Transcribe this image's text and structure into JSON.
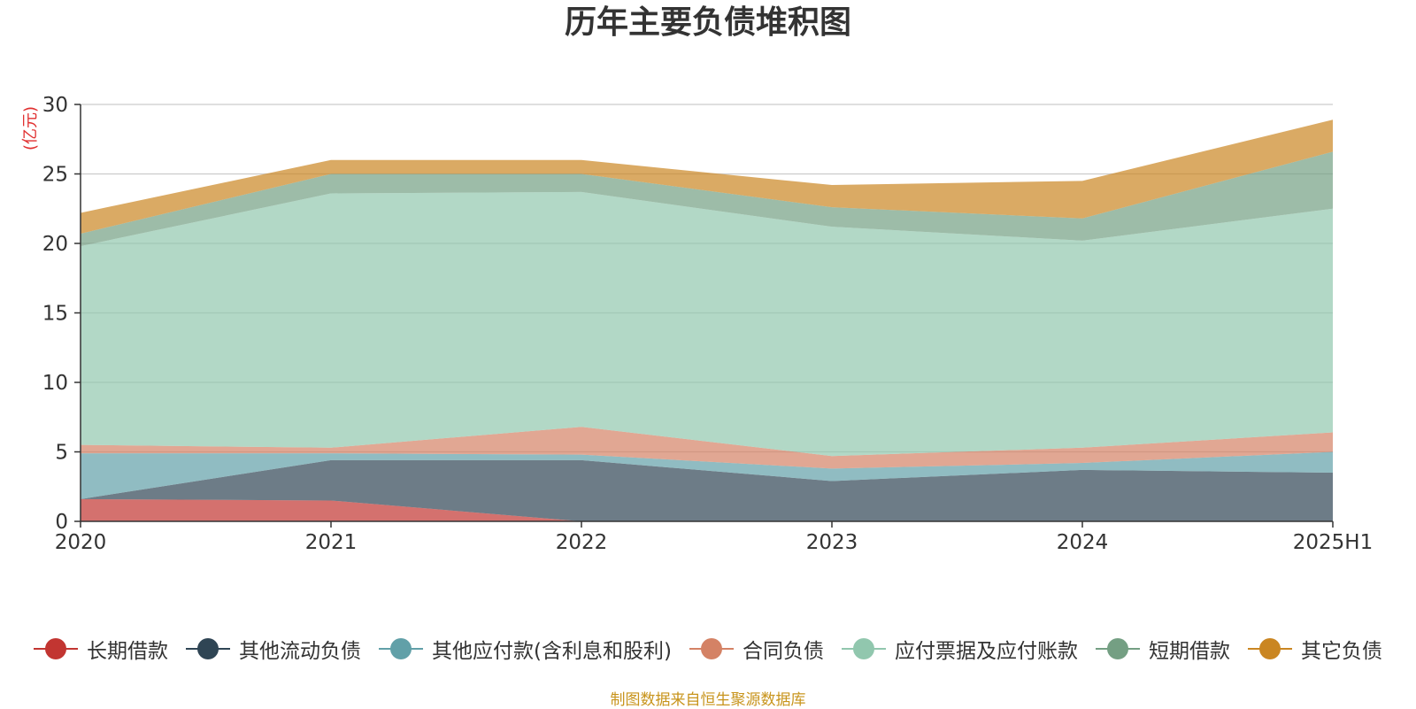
{
  "chart_data": {
    "type": "area",
    "title": "历年主要负债堆积图",
    "ylabel": "(亿元)",
    "ylim": [
      0,
      30
    ],
    "yticks": [
      0,
      5,
      10,
      15,
      20,
      25,
      30
    ],
    "grid": true,
    "legend_position": "bottom",
    "categories": [
      "2020",
      "2021",
      "2022",
      "2023",
      "2024",
      "2025H1"
    ],
    "series": [
      {
        "name": "长期借款",
        "color": "#c23531",
        "values": [
          1.6,
          1.5,
          0.0,
          0.0,
          0.0,
          0.0
        ]
      },
      {
        "name": "其他流动负债",
        "color": "#2f4554",
        "values": [
          0.0,
          2.9,
          4.4,
          2.9,
          3.7,
          3.5
        ]
      },
      {
        "name": "其他应付款(含利息和股利)",
        "color": "#61a0a8",
        "values": [
          3.3,
          0.5,
          0.4,
          0.9,
          0.5,
          1.5
        ]
      },
      {
        "name": "合同负债",
        "color": "#d48265",
        "values": [
          0.6,
          0.4,
          2.0,
          0.9,
          1.1,
          1.4
        ]
      },
      {
        "name": "应付票据及应付账款",
        "color": "#91c7ae",
        "values": [
          14.3,
          18.3,
          16.9,
          16.5,
          14.9,
          16.1
        ]
      },
      {
        "name": "短期借款",
        "color": "#749f83",
        "values": [
          0.9,
          1.4,
          1.3,
          1.4,
          1.6,
          4.1
        ]
      },
      {
        "name": "其它负债",
        "color": "#ca8622",
        "values": [
          1.5,
          1.0,
          1.0,
          1.6,
          2.7,
          2.3
        ]
      }
    ]
  },
  "footer": "制图数据来自恒生聚源数据库"
}
